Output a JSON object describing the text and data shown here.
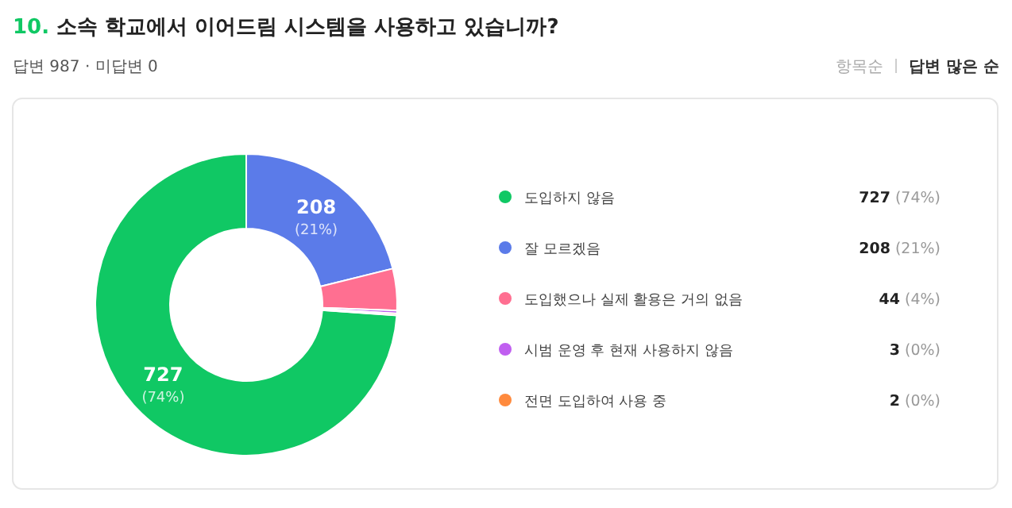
{
  "chart_data": {
    "type": "donut",
    "title": "10. 소속 학교에서 이어드림 시스템을 사용하고 있습니까?",
    "subtitle": "답변 987 · 미답변 0",
    "annotations": [
      "항목순",
      "답변 많은 순"
    ],
    "categories": [
      "도입하지 않음",
      "잘 모르겠음",
      "도입했으나 실제 활용은 거의 없음",
      "시범 운영 후 현재 사용하지 않음",
      "전면 도입하여 사용 중"
    ],
    "values": [
      727,
      208,
      44,
      3,
      2
    ],
    "colors": [
      "#10c864",
      "#5b7be9",
      "#ff6f91",
      "#c05ff0",
      "#ff8a3d"
    ],
    "value_labels": [
      "727 (74%)",
      "208 (21%)",
      "44 (4%)",
      "3 (0%)",
      "2 (0%)"
    ],
    "legend": "right"
  }
}
